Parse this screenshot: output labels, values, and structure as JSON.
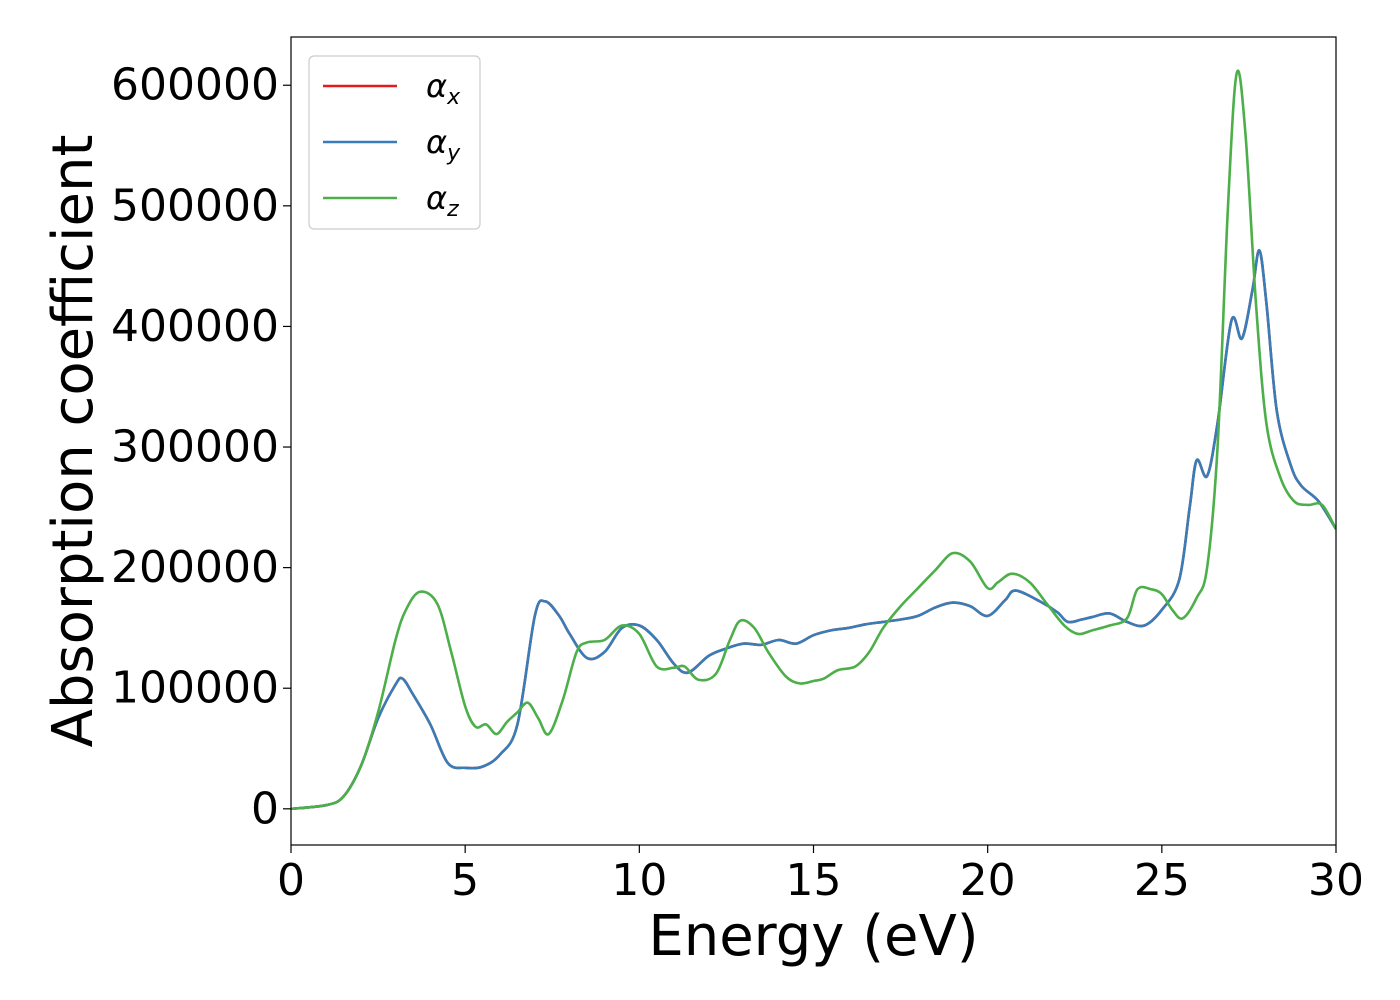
{
  "chart_data": {
    "type": "line",
    "xlabel": "Energy (eV)",
    "ylabel": "Absorption coefficient",
    "xlim": [
      0,
      30
    ],
    "ylim": [
      -30000,
      640000
    ],
    "xticks": [
      0,
      5,
      10,
      15,
      20,
      25,
      30
    ],
    "yticks": [
      0,
      100000,
      200000,
      300000,
      400000,
      500000,
      600000
    ],
    "xtick_labels": [
      "0",
      "5",
      "10",
      "15",
      "20",
      "25",
      "30"
    ],
    "ytick_labels": [
      "0",
      "100000",
      "200000",
      "300000",
      "400000",
      "500000",
      "600000"
    ],
    "grid": false,
    "legend_position": "top-left",
    "series": [
      {
        "name": "αx",
        "legend_base": "α",
        "legend_sub": "x",
        "color": "#e41a1c",
        "x": [
          0,
          1,
          1.5,
          2,
          2.5,
          3,
          3.2,
          3.5,
          4,
          4.5,
          5,
          5.5,
          6,
          6.5,
          7,
          7.3,
          7.7,
          8,
          8.5,
          9,
          9.5,
          10,
          10.5,
          11,
          11.4,
          12,
          12.5,
          13,
          13.5,
          14,
          14.5,
          15,
          15.5,
          16,
          16.5,
          17,
          17.5,
          18,
          18.5,
          19,
          19.5,
          20,
          20.5,
          20.8,
          21.5,
          22,
          22.3,
          22.7,
          23,
          23.5,
          24,
          24.5,
          25,
          25.5,
          25.8,
          26,
          26.3,
          26.6,
          27,
          27.3,
          27.6,
          27.8,
          28,
          28.3,
          28.7,
          29,
          29.5,
          30
        ],
        "y": [
          0,
          3000,
          10000,
          35000,
          75000,
          103000,
          108000,
          95000,
          70000,
          38000,
          34000,
          35000,
          45000,
          70000,
          160000,
          172000,
          160000,
          145000,
          125000,
          130000,
          150000,
          152000,
          140000,
          120000,
          113000,
          127000,
          133000,
          137000,
          136000,
          140000,
          137000,
          144000,
          148000,
          150000,
          153000,
          155000,
          157000,
          160000,
          167000,
          171000,
          168000,
          160000,
          173000,
          181000,
          172000,
          163000,
          155000,
          157000,
          159000,
          162000,
          155000,
          152000,
          165000,
          190000,
          250000,
          289000,
          276000,
          320000,
          405000,
          390000,
          430000,
          463000,
          420000,
          330000,
          285000,
          268000,
          255000,
          232000
        ]
      },
      {
        "name": "αy",
        "legend_base": "α",
        "legend_sub": "y",
        "color": "#377eb8",
        "x": [
          0,
          1,
          1.5,
          2,
          2.5,
          3,
          3.2,
          3.5,
          4,
          4.5,
          5,
          5.5,
          6,
          6.5,
          7,
          7.3,
          7.7,
          8,
          8.5,
          9,
          9.5,
          10,
          10.5,
          11,
          11.4,
          12,
          12.5,
          13,
          13.5,
          14,
          14.5,
          15,
          15.5,
          16,
          16.5,
          17,
          17.5,
          18,
          18.5,
          19,
          19.5,
          20,
          20.5,
          20.8,
          21.5,
          22,
          22.3,
          22.7,
          23,
          23.5,
          24,
          24.5,
          25,
          25.5,
          25.8,
          26,
          26.3,
          26.6,
          27,
          27.3,
          27.6,
          27.8,
          28,
          28.3,
          28.7,
          29,
          29.5,
          30
        ],
        "y": [
          0,
          3000,
          10000,
          35000,
          75000,
          103000,
          108000,
          95000,
          70000,
          38000,
          34000,
          35000,
          45000,
          70000,
          160000,
          172000,
          160000,
          145000,
          125000,
          130000,
          150000,
          152000,
          140000,
          120000,
          113000,
          127000,
          133000,
          137000,
          136000,
          140000,
          137000,
          144000,
          148000,
          150000,
          153000,
          155000,
          157000,
          160000,
          167000,
          171000,
          168000,
          160000,
          173000,
          181000,
          172000,
          163000,
          155000,
          157000,
          159000,
          162000,
          155000,
          152000,
          165000,
          190000,
          250000,
          289000,
          276000,
          320000,
          405000,
          390000,
          430000,
          463000,
          420000,
          330000,
          285000,
          268000,
          255000,
          232000
        ]
      },
      {
        "name": "αz",
        "legend_base": "α",
        "legend_sub": "z",
        "color": "#4daf4a",
        "x": [
          0,
          1,
          1.5,
          2,
          2.5,
          3,
          3.3,
          3.7,
          4.2,
          4.6,
          5,
          5.3,
          5.6,
          5.9,
          6.2,
          6.5,
          6.8,
          7.1,
          7.4,
          7.8,
          8.2,
          8.5,
          9,
          9.5,
          10,
          10.5,
          11,
          11.3,
          11.7,
          12.2,
          12.6,
          12.9,
          13.3,
          13.7,
          14.2,
          14.6,
          15,
          15.3,
          15.7,
          16.2,
          16.6,
          17,
          17.5,
          18,
          18.5,
          19,
          19.5,
          20,
          20.3,
          20.7,
          21.2,
          21.7,
          22.2,
          22.6,
          23,
          23.5,
          24,
          24.3,
          24.7,
          25,
          25.3,
          25.6,
          26,
          26.3,
          26.6,
          26.9,
          27.15,
          27.4,
          27.7,
          28,
          28.4,
          28.8,
          29.2,
          29.6,
          30
        ],
        "y": [
          0,
          3000,
          10000,
          35000,
          80000,
          140000,
          165000,
          180000,
          170000,
          130000,
          85000,
          68000,
          70000,
          62000,
          72000,
          80000,
          88000,
          75000,
          62000,
          90000,
          130000,
          138000,
          140000,
          152000,
          145000,
          118000,
          117000,
          118000,
          107000,
          112000,
          140000,
          156000,
          150000,
          130000,
          110000,
          104000,
          106000,
          108000,
          115000,
          118000,
          130000,
          150000,
          168000,
          183000,
          198000,
          212000,
          205000,
          183000,
          188000,
          195000,
          188000,
          170000,
          152000,
          145000,
          148000,
          152000,
          158000,
          182000,
          182000,
          178000,
          165000,
          158000,
          175000,
          200000,
          300000,
          500000,
          610000,
          560000,
          420000,
          320000,
          275000,
          255000,
          252000,
          252000,
          232000
        ]
      }
    ]
  }
}
